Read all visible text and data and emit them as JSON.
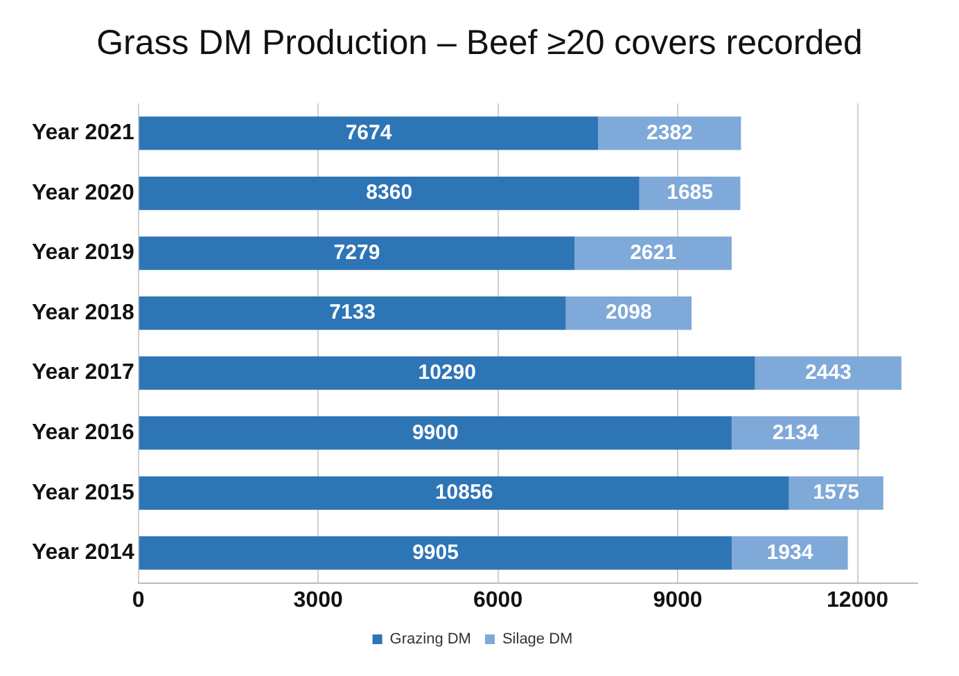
{
  "chart_data": {
    "type": "bar",
    "title": "Grass DM Production – Beef ≥20 covers recorded",
    "orientation": "horizontal",
    "stacked": true,
    "categories": [
      "Year 2021",
      "Year 2020",
      "Year 2019",
      "Year 2018",
      "Year 2017",
      "Year 2016",
      "Year 2015",
      "Year 2014"
    ],
    "series": [
      {
        "name": "Grazing DM",
        "color": "#2e75b6",
        "values": [
          7674,
          8360,
          7279,
          7133,
          10290,
          9900,
          10856,
          9905
        ]
      },
      {
        "name": "Silage DM",
        "color": "#7fa9d8",
        "values": [
          2382,
          1685,
          2621,
          2098,
          2443,
          2134,
          1575,
          1934
        ]
      }
    ],
    "xlim": [
      0,
      13000
    ],
    "xticks": [
      0,
      3000,
      6000,
      9000,
      12000
    ],
    "grid": "x",
    "legend": "bottom",
    "data_labels": true
  }
}
